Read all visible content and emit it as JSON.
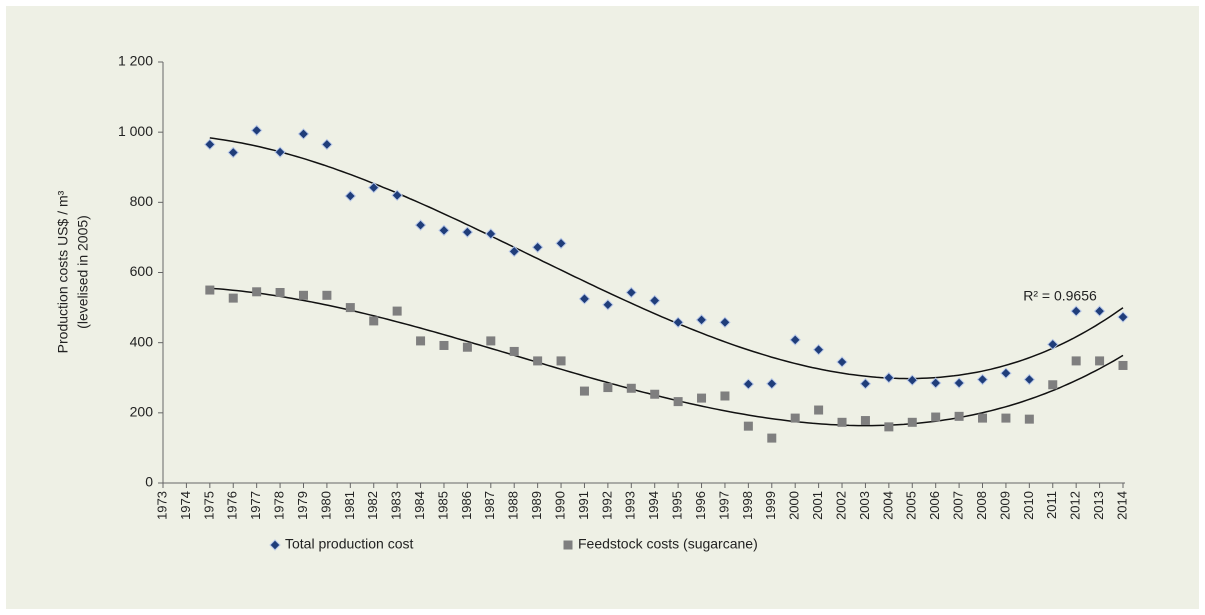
{
  "chart_data": {
    "type": "scatter",
    "ylabel": [
      "Production costs US$ / m³",
      "(levelised in 2005)"
    ],
    "annotation": "R² = 0.9656",
    "x": [
      1975,
      1976,
      1977,
      1978,
      1979,
      1980,
      1981,
      1982,
      1983,
      1984,
      1985,
      1986,
      1987,
      1988,
      1989,
      1990,
      1991,
      1992,
      1993,
      1994,
      1995,
      1996,
      1997,
      1998,
      1999,
      2000,
      2001,
      2002,
      2003,
      2004,
      2005,
      2006,
      2007,
      2008,
      2009,
      2010,
      2011,
      2012,
      2013,
      2014
    ],
    "series": [
      {
        "name": "Total production cost",
        "color": "#1f3d7a",
        "marker": "diamond",
        "values": [
          965,
          942,
          1005,
          943,
          995,
          965,
          818,
          842,
          820,
          735,
          720,
          715,
          710,
          660,
          672,
          683,
          525,
          508,
          543,
          520,
          458,
          465,
          458,
          282,
          283,
          408,
          380,
          345,
          283,
          300,
          293,
          285,
          285,
          295,
          313,
          295,
          395,
          490,
          490,
          473
        ]
      },
      {
        "name": "Feedstock costs (sugarcane)",
        "color": "#7f7f7f",
        "marker": "square",
        "values": [
          550,
          527,
          545,
          543,
          535,
          535,
          500,
          462,
          490,
          405,
          392,
          387,
          405,
          375,
          348,
          348,
          262,
          272,
          270,
          253,
          232,
          242,
          248,
          162,
          128,
          185,
          208,
          173,
          178,
          160,
          173,
          188,
          190,
          185,
          185,
          182,
          280,
          348,
          348,
          335
        ]
      }
    ],
    "trendline": "polynomial",
    "xlim": [
      1973,
      2014
    ],
    "xticks": [
      1973,
      1974,
      1975,
      1976,
      1977,
      1978,
      1979,
      1980,
      1981,
      1982,
      1983,
      1984,
      1985,
      1986,
      1987,
      1988,
      1989,
      1990,
      1991,
      1992,
      1993,
      1994,
      1995,
      1996,
      1997,
      1998,
      1999,
      2000,
      2001,
      2002,
      2003,
      2004,
      2005,
      2006,
      2007,
      2008,
      2009,
      2010,
      2011,
      2012,
      2013,
      2014
    ],
    "ylim": [
      0,
      1200
    ],
    "yticks": [
      0,
      200,
      400,
      600,
      800,
      {
        "value": 1000,
        "label": "1 000"
      },
      {
        "value": 1200,
        "label": "1 200"
      }
    ],
    "legend": "bottom"
  }
}
